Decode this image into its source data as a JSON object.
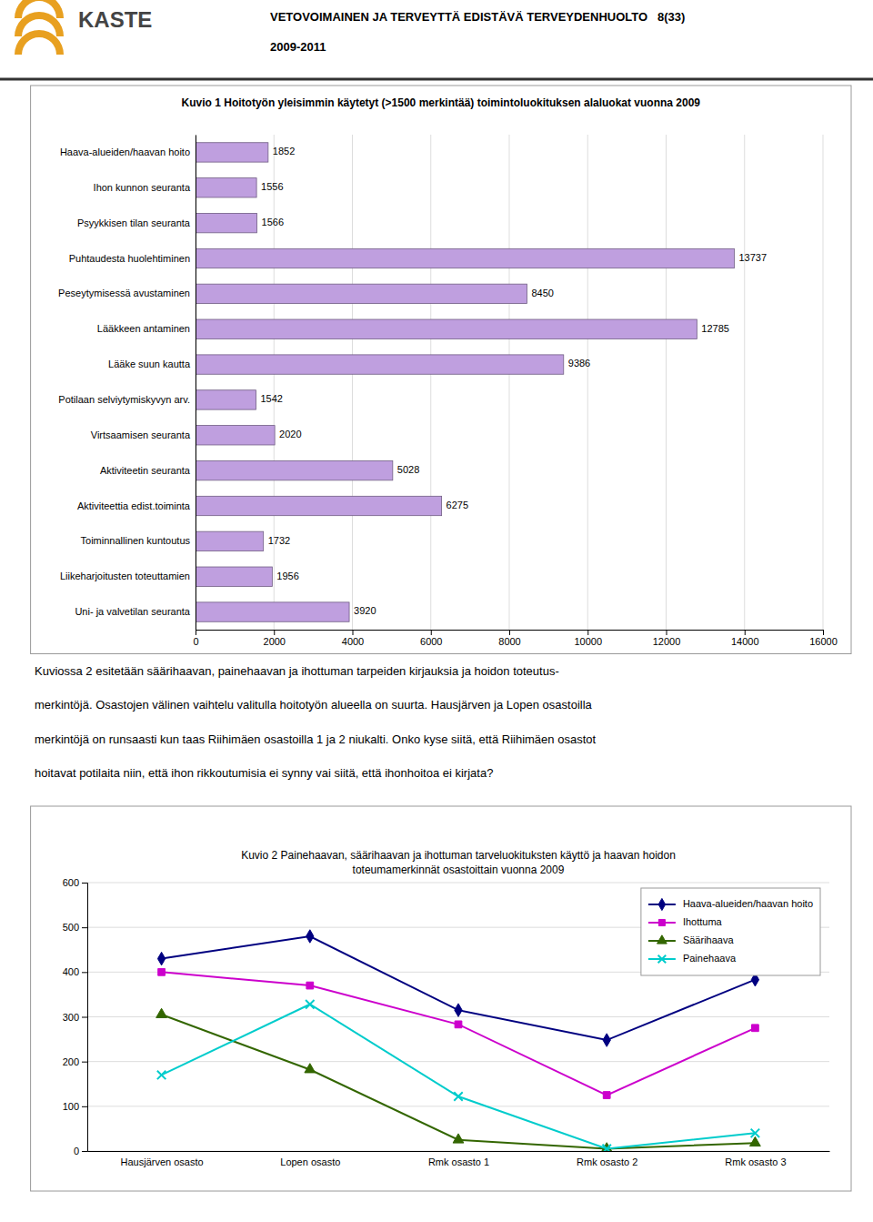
{
  "chart_data": [
    {
      "type": "bar",
      "orientation": "horizontal",
      "title": "Kuvio 1  Hoitotyön yleisimmin käytetyt (>1500 merkintää) toimintoluokituksen alaluokat vuonna 2009",
      "annotations": [
        "KASTE",
        "VETOVOIMAINEN JA TERVEYTTÄ EDISTÄVÄ TERVEYDENHUOLTO   8(33)",
        "2009-2011"
      ],
      "categories": [
        "Haava-alueiden/haavan hoito",
        "Ihon kunnon seuranta",
        "Psyykkisen tilan seuranta",
        "Puhtaudesta huolehtiminen",
        "Peseytymisessä avustaminen",
        "Lääkkeen antaminen",
        "Lääke suun kautta",
        "Potilaan selviytymiskyvyn arv.",
        "Virtsaamisen seuranta",
        "Aktiviteetin seuranta",
        "Aktiviteettia edist.toiminta",
        "Toiminnallinen kuntoutus",
        "Liikeharjoitusten toteuttamien",
        "Uni- ja valvetilan seuranta"
      ],
      "values": [
        1852,
        1556,
        1566,
        13737,
        8450,
        12785,
        9386,
        1542,
        2020,
        5028,
        6275,
        1732,
        1956,
        3920
      ],
      "color": "#bf9fdf",
      "xlim": [
        0,
        16000
      ],
      "xticks": [
        0,
        2000,
        4000,
        6000,
        8000,
        10000,
        12000,
        14000,
        16000
      ],
      "grid": true,
      "data_labels": true
    },
    {
      "type": "line",
      "title": "Kuvio 2 Painehaavan, säärihaavan ja ihottuman tarveluokituksten käyttö ja haavan hoidon",
      "subtitle": "toteumamerkinnät osastoittain vuonna 2009",
      "annotations": [
        "Kuviossa 2 esitetään säärihaavan, painehaavan ja ihottuman tarpeiden kirjauksia ja hoidon toteutus-",
        "merkintöjä. Osastojen välinen vaihtelu valitulla hoitotyön alueella on suurta. Hausjärven ja Lopen osastoilla",
        "merkintöjä on runsaasti kun taas Riihimäen osastoilla 1 ja 2 niukalti. Onko kyse siitä, että Riihimäen osastot",
        "hoitavat potilaita niin, että ihon rikkoutumisia ei synny vai siitä, että ihonhoitoa ei kirjata?"
      ],
      "categories": [
        "Hausjärven osasto",
        "Lopen osasto",
        "Rmk osasto 1",
        "Rmk osasto 2",
        "Rmk osasto 3"
      ],
      "series": [
        {
          "name": "Haava-alueiden/haavan hoito",
          "color": "#000080",
          "values": [
            430,
            480,
            315,
            248,
            383
          ],
          "marker": "diamond",
          "line_style": "solid"
        },
        {
          "name": "Ihottuma",
          "color": "#cc00cc",
          "values": [
            400,
            370,
            283,
            125,
            275
          ],
          "marker": "square",
          "line_style": "solid"
        },
        {
          "name": "Säärihaava",
          "color": "#336600",
          "values": [
            305,
            182,
            25,
            5,
            18
          ],
          "marker": "triangle",
          "line_style": "solid"
        },
        {
          "name": "Painehaava",
          "color": "#00cccc",
          "values": [
            170,
            328,
            122,
            5,
            40
          ],
          "marker": "x",
          "line_style": "solid"
        }
      ],
      "ylim": [
        0,
        600
      ],
      "yticks": [
        0,
        100,
        200,
        300,
        400,
        500,
        600
      ],
      "grid": true,
      "legend": "upper right"
    }
  ]
}
